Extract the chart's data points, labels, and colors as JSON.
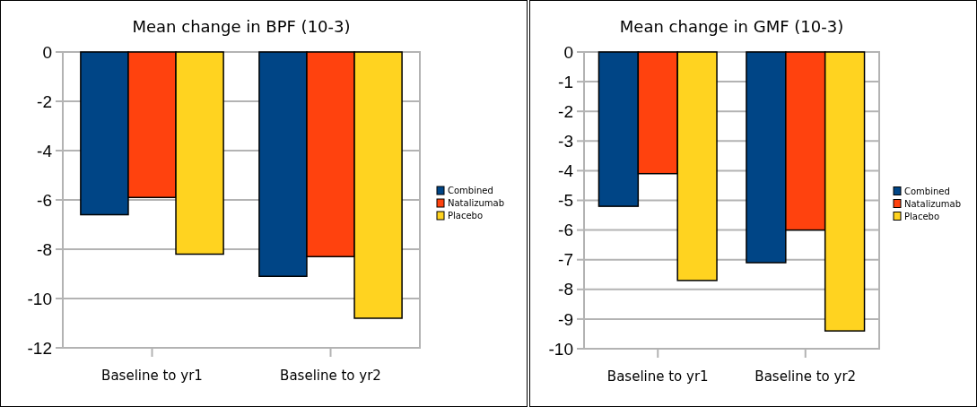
{
  "chart_data": [
    {
      "type": "bar",
      "title": "Mean change in BPF (10-3)",
      "categories": [
        "Baseline to yr1",
        "Baseline to yr2"
      ],
      "series": [
        {
          "name": "Combined",
          "color": "#004586",
          "values": [
            -6.6,
            -9.1
          ]
        },
        {
          "name": "Natalizumab",
          "color": "#ff420e",
          "values": [
            -5.9,
            -8.3
          ]
        },
        {
          "name": "Placebo",
          "color": "#ffd320",
          "values": [
            -8.2,
            -10.8
          ]
        }
      ],
      "ylim": [
        -12,
        0
      ],
      "yticks": [
        -12,
        -10,
        -8,
        -6,
        -4,
        -2,
        0
      ],
      "grid": "y",
      "legend": "right"
    },
    {
      "type": "bar",
      "title": "Mean change in GMF (10-3)",
      "categories": [
        "Baseline to yr1",
        "Baseline to yr2"
      ],
      "series": [
        {
          "name": "Combined",
          "color": "#004586",
          "values": [
            -5.2,
            -7.1
          ]
        },
        {
          "name": "Natalizumab",
          "color": "#ff420e",
          "values": [
            -4.1,
            -6.0
          ]
        },
        {
          "name": "Placebo",
          "color": "#ffd320",
          "values": [
            -7.7,
            -9.4
          ]
        }
      ],
      "ylim": [
        -10,
        0
      ],
      "yticks": [
        -10,
        -9,
        -8,
        -7,
        -6,
        -5,
        -4,
        -3,
        -2,
        -1,
        0
      ],
      "grid": "y",
      "legend": "right"
    }
  ]
}
